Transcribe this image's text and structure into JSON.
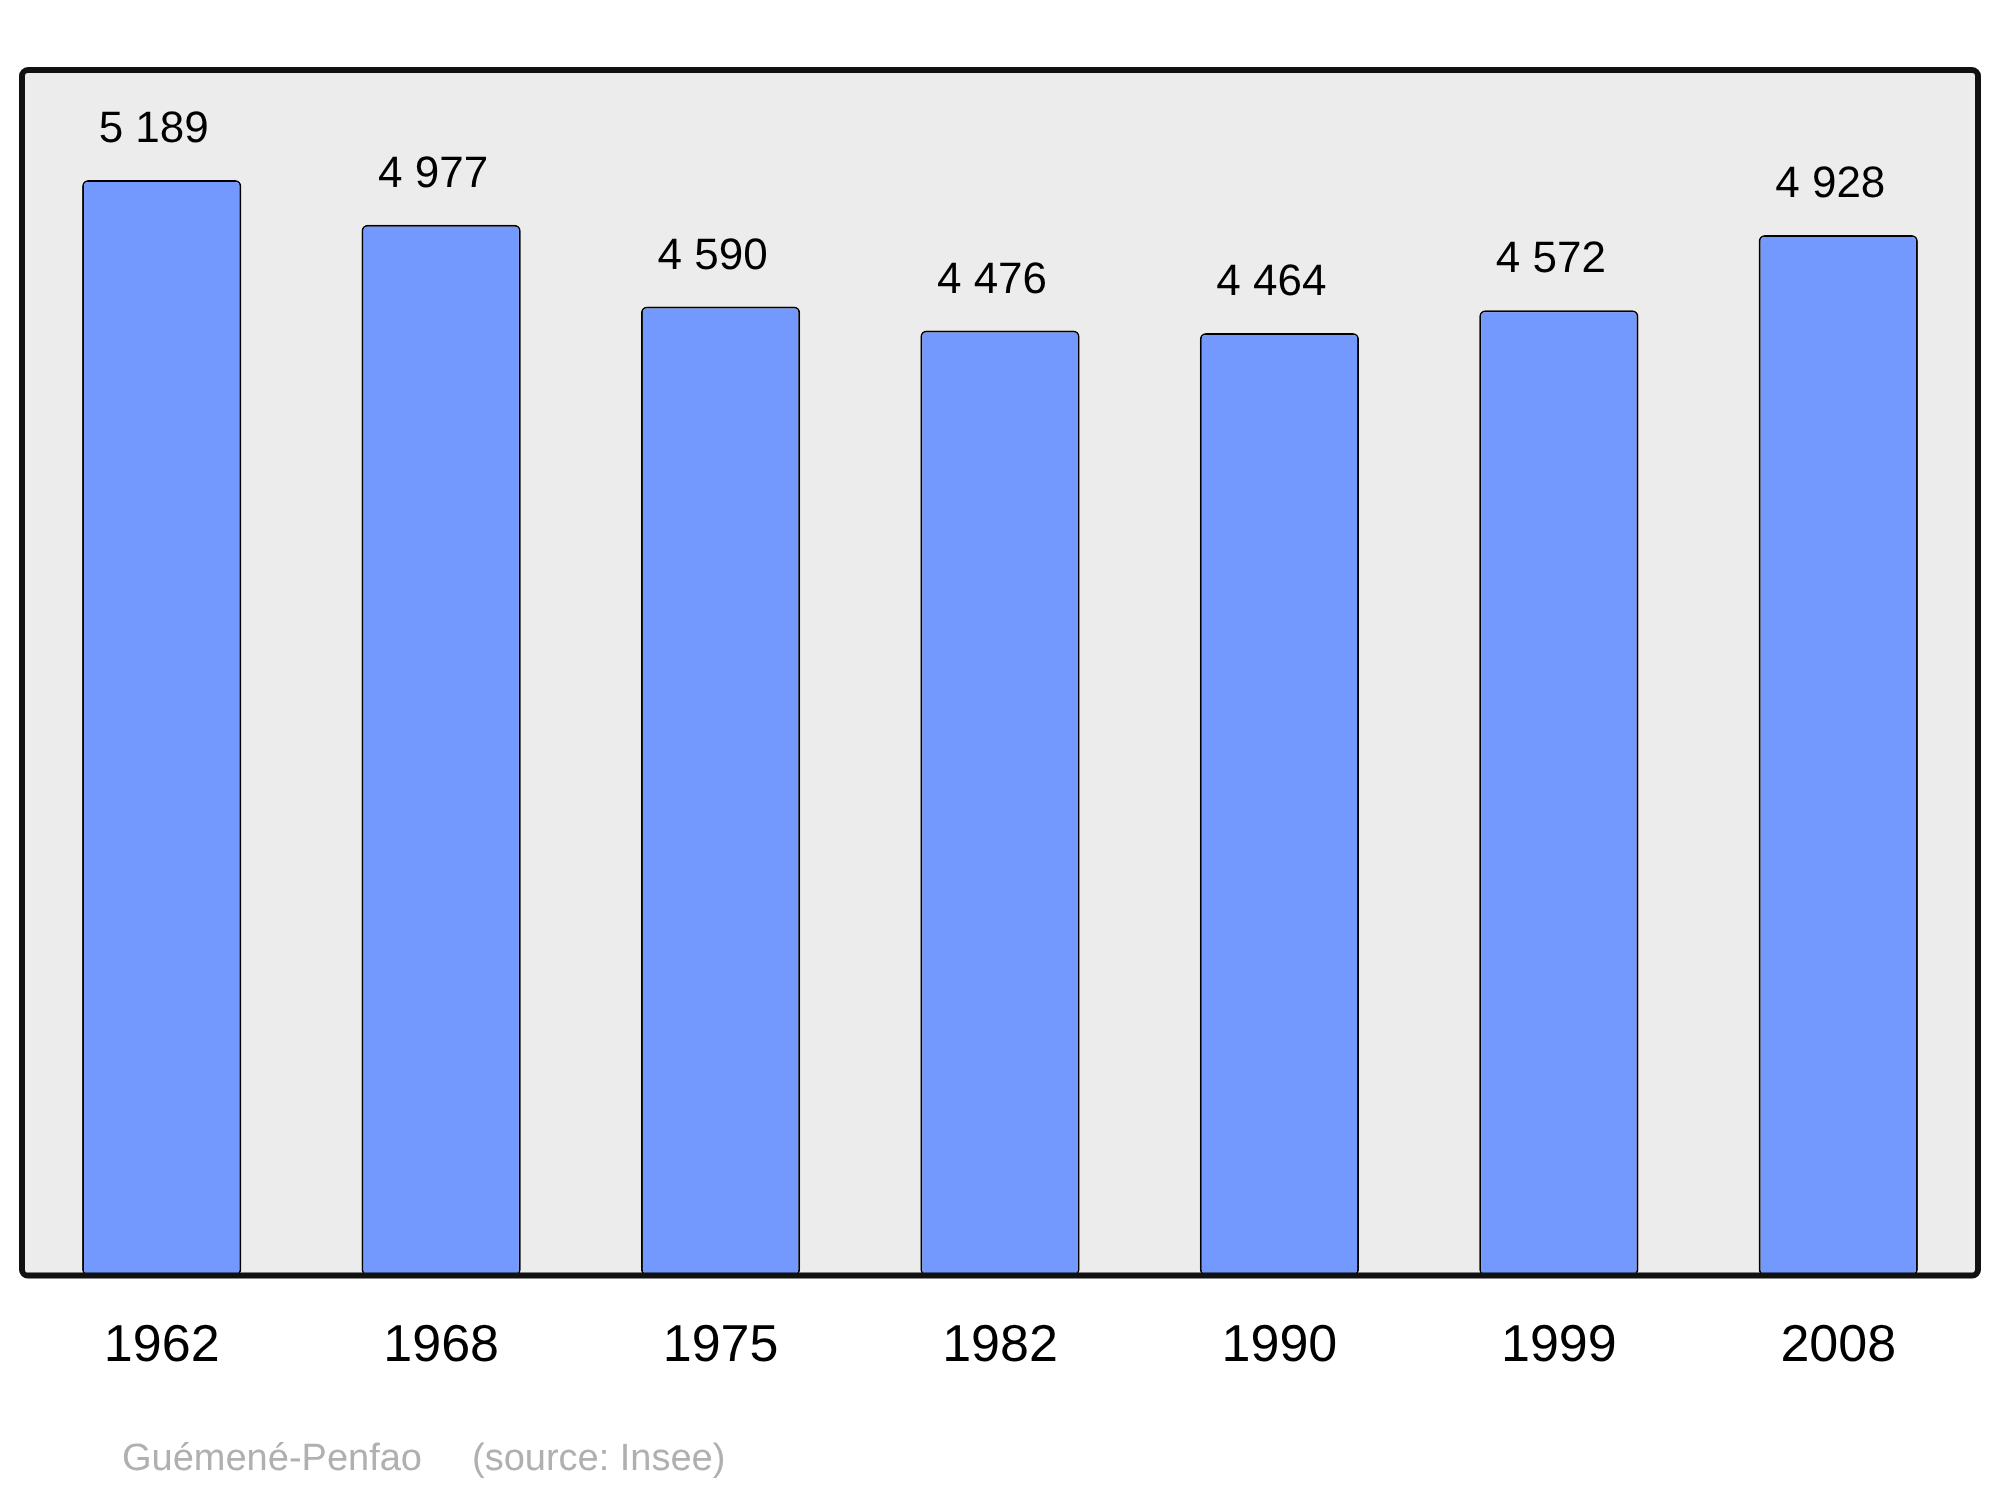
{
  "chart_data": {
    "type": "bar",
    "categories": [
      "1962",
      "1968",
      "1975",
      "1982",
      "1990",
      "1999",
      "2008"
    ],
    "values": [
      5189,
      4977,
      4590,
      4476,
      4464,
      4572,
      4928
    ],
    "value_labels": [
      "5 189",
      "4 977",
      "4 590",
      "4 476",
      "4 464",
      "4 572",
      "4 928"
    ],
    "color": "#7399ff",
    "ylim": [
      0,
      5710
    ],
    "tick_labels": "x",
    "annotations": [
      "Guémené-Penfao",
      "(source: Insee)"
    ]
  }
}
